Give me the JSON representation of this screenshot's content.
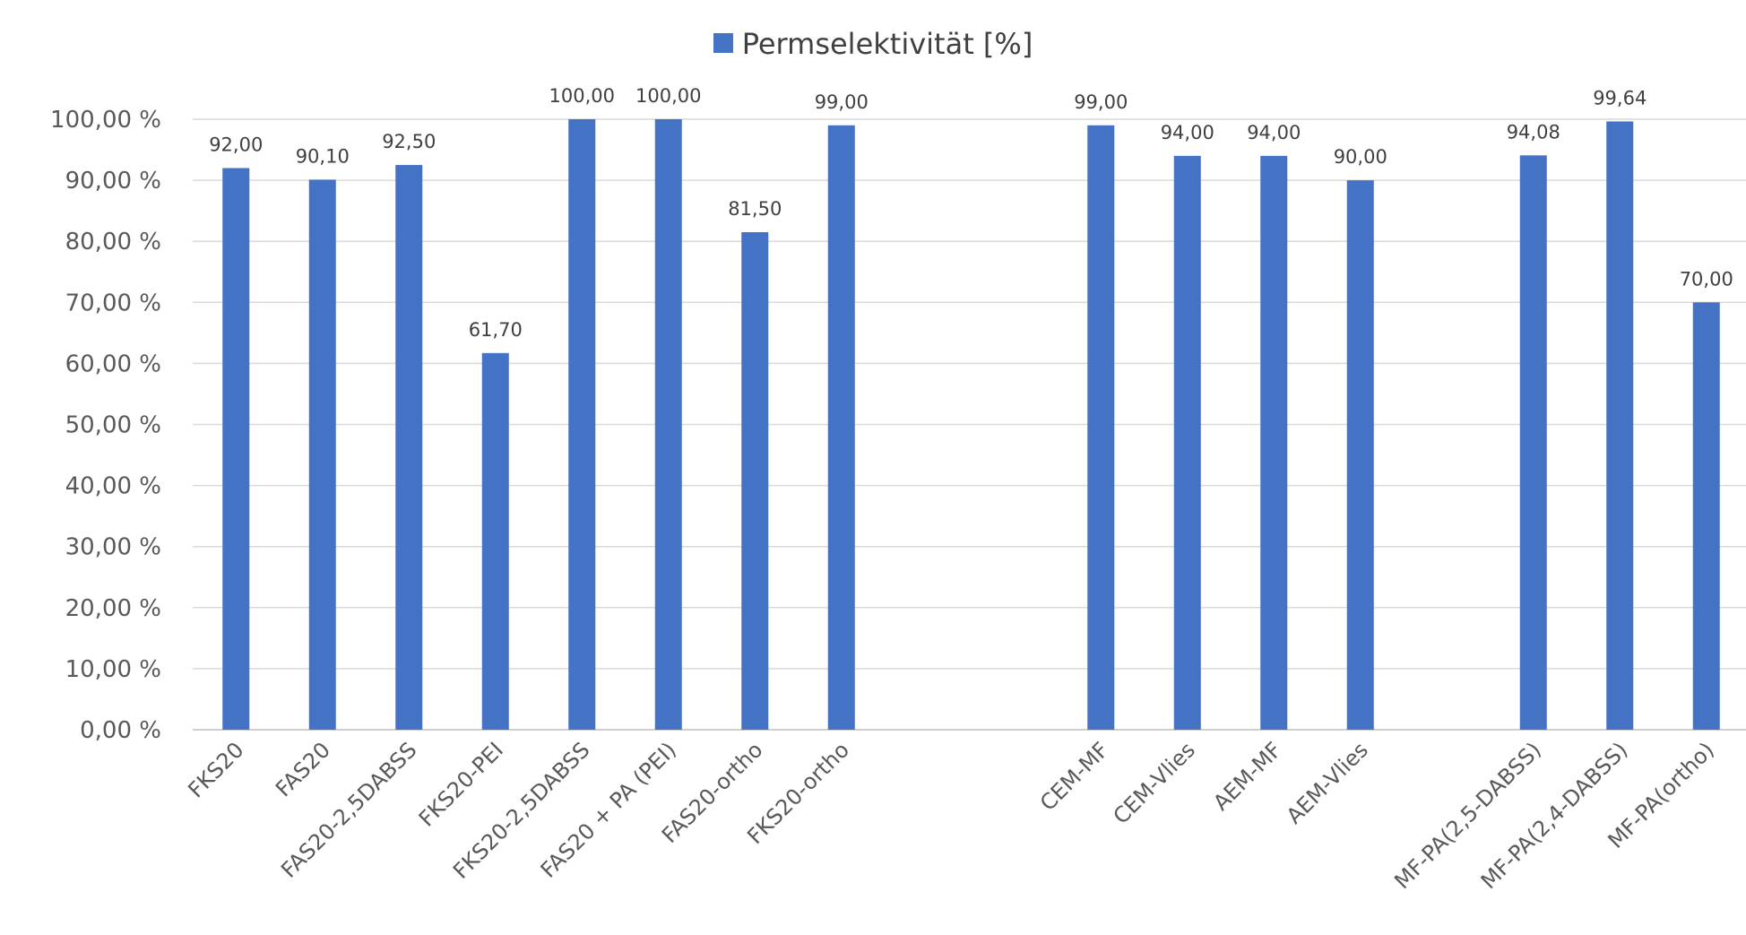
{
  "chart_data": {
    "type": "bar",
    "legend": "Permselektivität [%]",
    "legend_position": "top",
    "grid": true,
    "ylim": [
      0,
      100
    ],
    "yticks": [
      "0,00 %",
      "10,00 %",
      "20,00 %",
      "30,00 %",
      "40,00 %",
      "50,00 %",
      "60,00 %",
      "70,00 %",
      "80,00 %",
      "90,00 %",
      "100,00 %"
    ],
    "series_color": "#4472c4",
    "categories": [
      "FKS20",
      "FAS20",
      "FAS20-2,5DABSS",
      "FKS20-PEI",
      "FKS20-2,5DABSS",
      "FAS20 + PA (PEI)",
      "FAS20-ortho",
      "FKS20-ortho",
      "",
      "",
      "CEM-MF",
      "CEM-Vlies",
      "AEM-MF",
      "AEM-Vlies",
      "",
      "MF-PA(2,5-DABSS)",
      "MF-PA(2,4-DABSS)",
      "MF-PA(ortho)"
    ],
    "series": [
      {
        "name": "Permselektivität [%]",
        "values": [
          92.0,
          90.1,
          92.5,
          61.7,
          100.0,
          100.0,
          81.5,
          99.0,
          null,
          null,
          99.0,
          94.0,
          94.0,
          90.0,
          null,
          94.08,
          99.64,
          70.0
        ],
        "labels": [
          "92,00",
          "90,10",
          "92,50",
          "61,70",
          "100,00",
          "100,00",
          "81,50",
          "99,00",
          "",
          "",
          "99,00",
          "94,00",
          "94,00",
          "90,00",
          "",
          "94,08",
          "99,64",
          "70,00"
        ]
      }
    ]
  }
}
